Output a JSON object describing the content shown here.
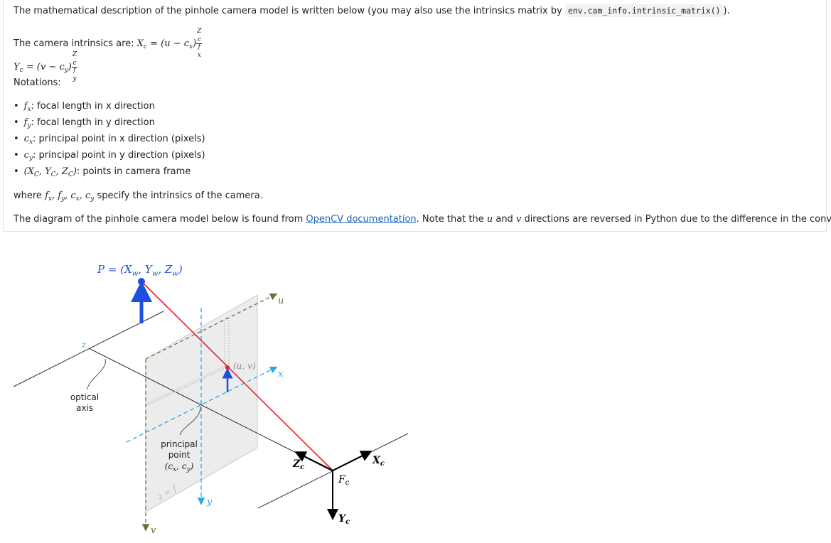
{
  "text": {
    "intro_before": "The mathematical description of the pinhole camera model is written below (you may also use the intrinsics matrix by ",
    "intro_code": "env.cam_info.intrinsic_matrix()",
    "intro_after": ").",
    "intrinsics_label": "The camera intrinsics are: ",
    "xc_formula": "X",
    "xc_sub": "c",
    "xc_rhs": " = (u − c",
    "xc_rhs_sub": "x",
    "xc_close": ")",
    "xc_frac_num": "Z",
    "xc_frac_num_sub": "c",
    "xc_frac_den": "f",
    "xc_frac_den_sub": "x",
    "yc_formula": "Y",
    "yc_sub": "c",
    "yc_rhs": " = (v − c",
    "yc_rhs_sub": "y",
    "yc_close": ")",
    "yc_frac_num": "Z",
    "yc_frac_num_sub": "c",
    "yc_frac_den": "f",
    "yc_frac_den_sub": "y",
    "notations_label": "Notations:",
    "notes": [
      {
        "sym": "f",
        "sub": "x",
        "desc": ": focal length in x direction"
      },
      {
        "sym": "f",
        "sub": "y",
        "desc": ": focal length in y direction"
      },
      {
        "sym": "c",
        "sub": "x",
        "desc": ": principal point in x direction (pixels)"
      },
      {
        "sym": "c",
        "sub": "y",
        "desc": ": principal point in y direction (pixels)"
      },
      {
        "sym": "(X",
        "sub": "C",
        "desc": ": points in camera frame"
      }
    ],
    "note5_mid1": ", Y",
    "note5_sub2": "C",
    "note5_mid2": ", Z",
    "note5_sub3": "C",
    "note5_close": ")",
    "where_before": "where ",
    "where_syms": "f",
    "where_after": " specify the intrinsics of the camera.",
    "diagram_before": "The diagram of the pinhole camera model below is found from ",
    "diagram_link": "OpenCV documentation",
    "diagram_after": ". Note that the ",
    "diagram_u": "u",
    "diagram_and": " and ",
    "diagram_v": "v",
    "diagram_end": " directions are reversed in Python due to the difference in the convention."
  },
  "diagram": {
    "point_label": "P = (X",
    "point_label_sub_w": "w",
    "point_label_y": ", Y",
    "point_label_z": ", Z",
    "point_label_close": ")",
    "optical_axis_1": "optical",
    "optical_axis_2": "axis",
    "principal_1": "principal",
    "principal_2": "point",
    "principal_3": "(c",
    "principal_3_mid": ", c",
    "principal_3_close": ")",
    "uv_label": "(u, v)",
    "u_axis": "u",
    "v_axis": "v",
    "x_axis": "x",
    "y_axis": "y",
    "z_axis": "z",
    "zf_label": "z = f",
    "Xc": "X",
    "Yc": "Y",
    "Zc": "Z",
    "c_sub": "c",
    "Fc": "F",
    "colors": {
      "ray": "#e8202a",
      "arrow": "#1c4fe0",
      "dashed_blue": "#29a8e0",
      "dashed_olive": "#6f6f3a",
      "plane": "#e4e4e4",
      "point_label": "#1c4fe0"
    }
  }
}
